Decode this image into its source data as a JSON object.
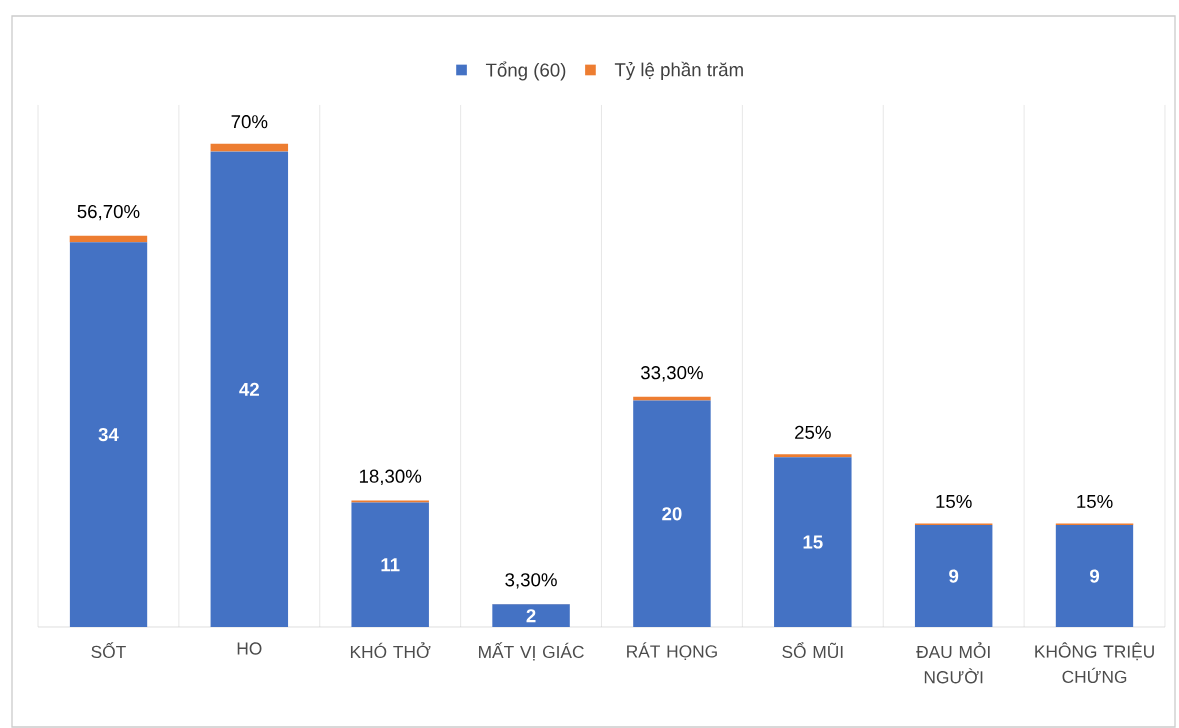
{
  "chart_data": {
    "type": "bar",
    "stacked": true,
    "categories": [
      "SỐT",
      "HO",
      "KHÓ THỞ",
      "MẤT VỊ GIÁC",
      "RÁT HỌNG",
      "SỔ MŨI",
      "ĐAU MỎI NGƯỜI",
      "KHÔNG TRIỆU CHỨNG"
    ],
    "series": [
      {
        "name": "Tổng (60)",
        "color": "#4472c4",
        "values": [
          34,
          42,
          11,
          2,
          20,
          15,
          9,
          9
        ],
        "data_labels": true
      },
      {
        "name": "Tỷ lệ phần trăm",
        "color": "#ed7d31",
        "values": [
          0.567,
          0.7,
          0.183,
          0.033,
          0.333,
          0.25,
          0.15,
          0.15
        ],
        "value_labels": [
          "56,70%",
          "70%",
          "18,30%",
          "3,30%",
          "33,30%",
          "25%",
          "15%",
          "15%"
        ]
      }
    ],
    "legend": "top",
    "grid": "x"
  }
}
